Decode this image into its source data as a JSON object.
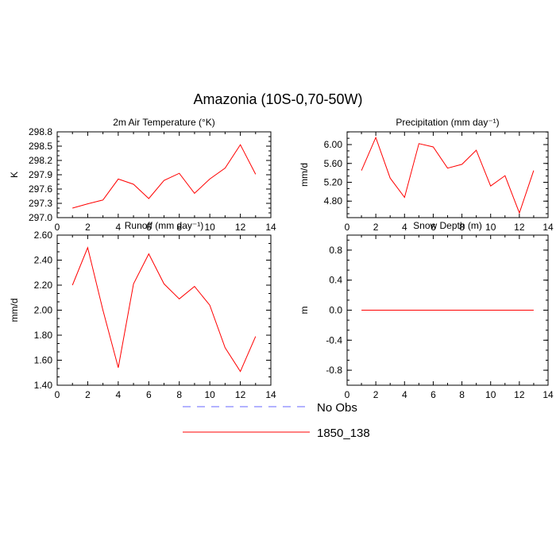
{
  "figure_title": "Amazonia (10S-0,70-50W)",
  "legend": [
    {
      "label": "No Obs",
      "color": "#6666ff",
      "style": "dashed"
    },
    {
      "label": "1850_138",
      "color": "#ff0000",
      "style": "solid"
    }
  ],
  "chart_data": [
    {
      "type": "line",
      "title": "2m Air Temperature (°K)",
      "xlabel": "",
      "ylabel": "K",
      "xlim": [
        0,
        14
      ],
      "ylim": [
        297.0,
        298.8
      ],
      "xticks": [
        0,
        2,
        4,
        6,
        8,
        10,
        12,
        14
      ],
      "yticks": [
        297.0,
        297.3,
        297.6,
        297.9,
        298.2,
        298.5,
        298.8
      ],
      "ytick_labels": [
        "297.0",
        "297.3",
        "297.6",
        "297.9",
        "298.2",
        "298.5",
        "298.8"
      ],
      "series": [
        {
          "name": "1850_138",
          "color": "#ff0000",
          "x": [
            1,
            2,
            3,
            4,
            5,
            6,
            7,
            8,
            9,
            10,
            11,
            12,
            13
          ],
          "y": [
            297.2,
            297.29,
            297.37,
            297.81,
            297.7,
            297.4,
            297.78,
            297.93,
            297.51,
            297.81,
            298.04,
            298.53,
            297.91
          ]
        }
      ]
    },
    {
      "type": "line",
      "title": "Precipitation (mm day⁻¹)",
      "xlabel": "",
      "ylabel": "mm/d",
      "xlim": [
        0,
        14
      ],
      "ylim": [
        4.45,
        6.27
      ],
      "xticks": [
        0,
        2,
        4,
        6,
        8,
        10,
        12,
        14
      ],
      "yticks": [
        4.8,
        5.2,
        5.6,
        6.0
      ],
      "ytick_labels": [
        "4.80",
        "5.20",
        "5.60",
        "6.00"
      ],
      "series": [
        {
          "name": "1850_138",
          "color": "#ff0000",
          "x": [
            1,
            2,
            3,
            4,
            5,
            6,
            7,
            8,
            9,
            10,
            11,
            12,
            13
          ],
          "y": [
            5.45,
            6.15,
            5.29,
            4.88,
            6.02,
            5.95,
            5.5,
            5.58,
            5.88,
            5.12,
            5.34,
            4.55,
            5.45
          ]
        }
      ]
    },
    {
      "type": "line",
      "title": "Runoff (mm day⁻¹)",
      "xlabel": "",
      "ylabel": "mm/d",
      "xlim": [
        0,
        14
      ],
      "ylim": [
        1.4,
        2.6
      ],
      "xticks": [
        0,
        2,
        4,
        6,
        8,
        10,
        12,
        14
      ],
      "yticks": [
        1.4,
        1.6,
        1.8,
        2.0,
        2.2,
        2.4,
        2.6
      ],
      "ytick_labels": [
        "1.40",
        "1.60",
        "1.80",
        "2.00",
        "2.20",
        "2.40",
        "2.60"
      ],
      "series": [
        {
          "name": "1850_138",
          "color": "#ff0000",
          "x": [
            1,
            2,
            3,
            4,
            5,
            6,
            7,
            8,
            9,
            10,
            11,
            12,
            13
          ],
          "y": [
            2.2,
            2.5,
            2.0,
            1.54,
            2.21,
            2.45,
            2.21,
            2.09,
            2.19,
            2.04,
            1.7,
            1.51,
            1.79
          ]
        }
      ]
    },
    {
      "type": "line",
      "title": "Snow Depth (m)",
      "xlabel": "",
      "ylabel": "m",
      "xlim": [
        0,
        14
      ],
      "ylim": [
        -1.0,
        1.0
      ],
      "xticks": [
        0,
        2,
        4,
        6,
        8,
        10,
        12,
        14
      ],
      "yticks": [
        -0.8,
        -0.4,
        0.0,
        0.4,
        0.8
      ],
      "ytick_labels": [
        "-0.8",
        "-0.4",
        "0.0",
        "0.4",
        "0.8"
      ],
      "series": [
        {
          "name": "1850_138",
          "color": "#ff0000",
          "x": [
            1,
            2,
            3,
            4,
            5,
            6,
            7,
            8,
            9,
            10,
            11,
            12,
            13
          ],
          "y": [
            0,
            0,
            0,
            0,
            0,
            0,
            0,
            0,
            0,
            0,
            0,
            0,
            0
          ]
        }
      ]
    }
  ]
}
